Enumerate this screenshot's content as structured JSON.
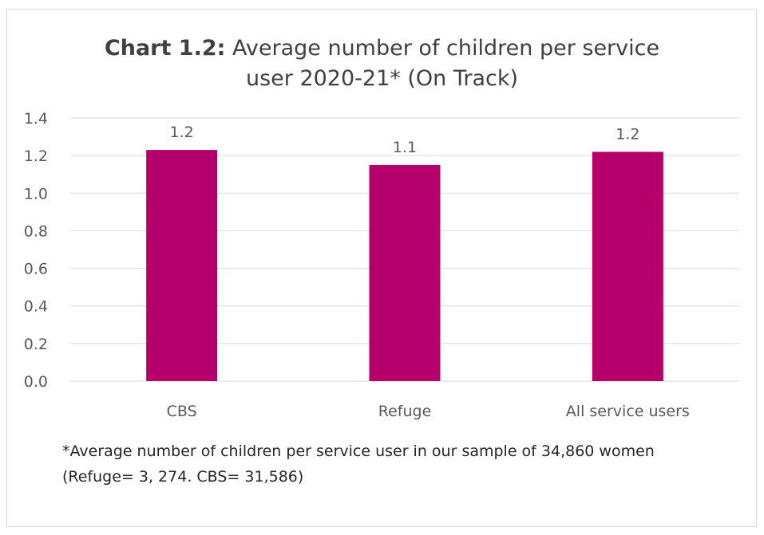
{
  "chart_data": {
    "type": "bar",
    "title_bold": "Chart 1.2:",
    "title_rest_line1": " Average number of children per service",
    "title_line2": "user 2020-21* (On Track)",
    "categories": [
      "CBS",
      "Refuge",
      "All service users"
    ],
    "values": [
      1.23,
      1.15,
      1.22
    ],
    "data_labels": [
      "1.2",
      "1.1",
      "1.2"
    ],
    "ylim": [
      0,
      1.4
    ],
    "yticks": [
      "0.0",
      "0.2",
      "0.4",
      "0.6",
      "0.8",
      "1.0",
      "1.2",
      "1.4"
    ],
    "grid": true,
    "legend": "none",
    "bar_color": "#b5006b",
    "grid_color": "#d9d9d9"
  },
  "footnote": {
    "line1": "*Average number of children per service user in our sample of 34,860 women",
    "line2": "(Refuge= 3, 274. CBS= 31,586)"
  }
}
